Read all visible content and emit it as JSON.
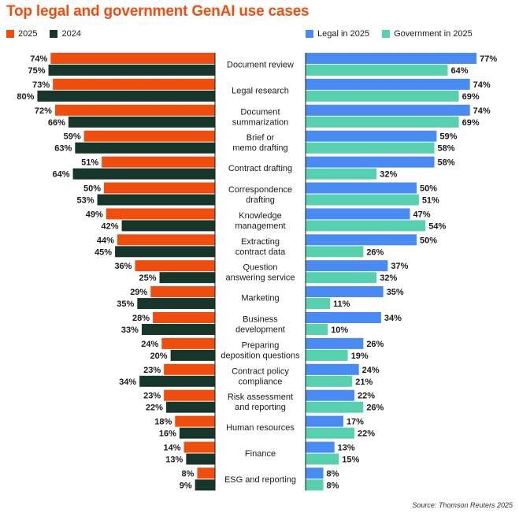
{
  "title": "Top legal and government GenAI use cases",
  "source": "Source: Thomson Reuters 2025",
  "legend_left": [
    {
      "label": "2025",
      "color": "#f04e0f"
    },
    {
      "label": "2024",
      "color": "#16352b"
    }
  ],
  "legend_right": [
    {
      "label": "Legal in 2025",
      "color": "#4a8af3"
    },
    {
      "label": "Government in 2025",
      "color": "#57d0b0"
    }
  ],
  "chart_data": {
    "type": "bar",
    "orientation": "horizontal",
    "layout": "butterfly",
    "categories": [
      [
        "Document review"
      ],
      [
        "Legal research"
      ],
      [
        "Document",
        "summarization"
      ],
      [
        "Brief or",
        "memo drafting"
      ],
      [
        "Contract drafting"
      ],
      [
        "Correspondence",
        "drafting"
      ],
      [
        "Knowledge",
        "management"
      ],
      [
        "Extracting",
        "contract data"
      ],
      [
        "Question",
        "answering service"
      ],
      [
        "Marketing"
      ],
      [
        "Business",
        "development"
      ],
      [
        "Preparing",
        "deposition questions"
      ],
      [
        "Contract policy",
        "compliance"
      ],
      [
        "Risk assessment",
        "and reporting"
      ],
      [
        "Human resources"
      ],
      [
        "Finance"
      ],
      [
        "ESG and reporting"
      ]
    ],
    "left_series": [
      {
        "name": "2025",
        "color": "#f04e0f",
        "values": [
          74,
          73,
          72,
          59,
          51,
          50,
          49,
          44,
          36,
          29,
          28,
          24,
          23,
          23,
          18,
          14,
          8
        ]
      },
      {
        "name": "2024",
        "color": "#16352b",
        "values": [
          75,
          80,
          66,
          63,
          64,
          53,
          42,
          45,
          25,
          35,
          33,
          20,
          34,
          22,
          16,
          13,
          9
        ]
      }
    ],
    "right_series": [
      {
        "name": "Legal in 2025",
        "color": "#4a8af3",
        "values": [
          77,
          74,
          74,
          59,
          58,
          50,
          47,
          50,
          37,
          35,
          34,
          26,
          24,
          22,
          17,
          13,
          8
        ]
      },
      {
        "name": "Government in 2025",
        "color": "#57d0b0",
        "values": [
          64,
          69,
          69,
          58,
          32,
          51,
          54,
          26,
          32,
          11,
          10,
          19,
          21,
          26,
          22,
          15,
          8
        ]
      }
    ],
    "value_suffix": "%"
  }
}
